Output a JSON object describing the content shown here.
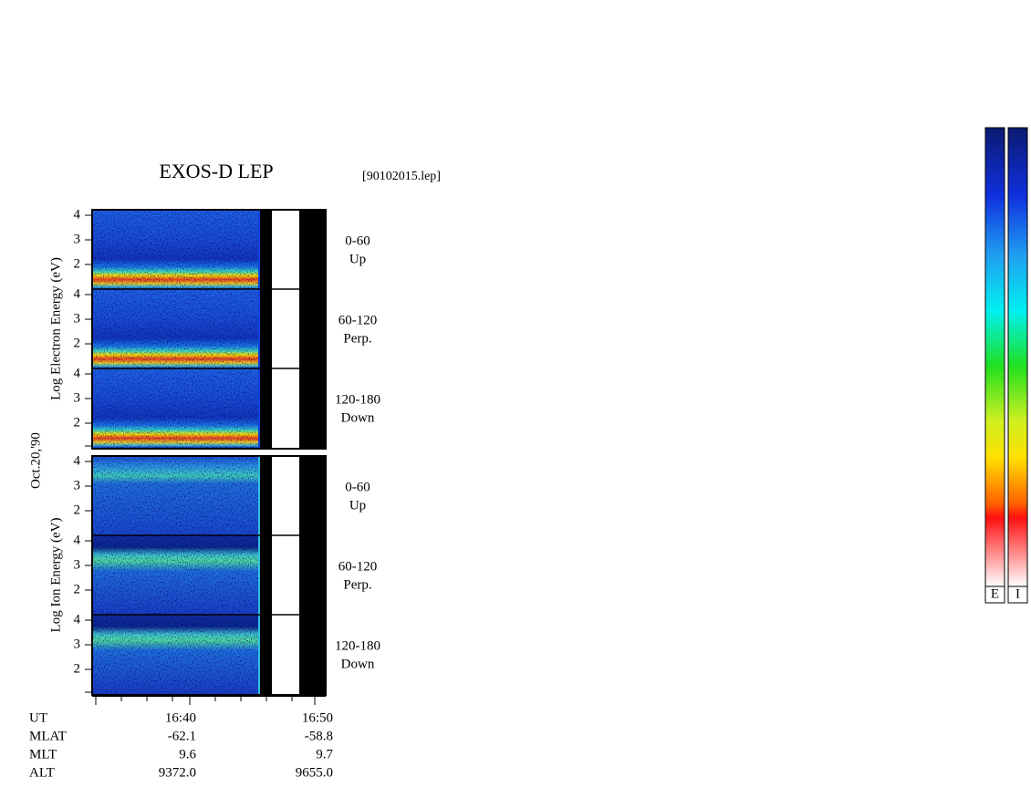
{
  "title": "EXOS-D LEP",
  "file": "[90102015.lep]",
  "date": "Oct.20,'90",
  "groups": [
    {
      "axis_label": "Log Electron Energy (eV)",
      "panels": [
        {
          "angle": "0-60",
          "direction": "Up",
          "yticks": [
            "4",
            "3",
            "2"
          ]
        },
        {
          "angle": "60-120",
          "direction": "Perp.",
          "yticks": [
            "4",
            "3",
            "2"
          ]
        },
        {
          "angle": "120-180",
          "direction": "Down",
          "yticks": [
            "4",
            "3",
            "2"
          ]
        }
      ]
    },
    {
      "axis_label": "Log Ion Energy (eV)",
      "panels": [
        {
          "angle": "0-60",
          "direction": "Up",
          "yticks": [
            "4",
            "3",
            "2"
          ]
        },
        {
          "angle": "60-120",
          "direction": "Perp.",
          "yticks": [
            "4",
            "3",
            "2"
          ]
        },
        {
          "angle": "120-180",
          "direction": "Down",
          "yticks": [
            "4",
            "3",
            "2"
          ]
        }
      ]
    }
  ],
  "footer": [
    {
      "label": "UT",
      "values": [
        "16:40",
        "16:50"
      ]
    },
    {
      "label": "MLAT",
      "values": [
        "-62.1",
        "-58.8"
      ]
    },
    {
      "label": "MLT",
      "values": [
        "9.6",
        "9.7"
      ]
    },
    {
      "label": "ALT",
      "values": [
        "9372.0",
        "9655.0"
      ]
    }
  ],
  "colorbars": [
    "E",
    "I"
  ]
}
